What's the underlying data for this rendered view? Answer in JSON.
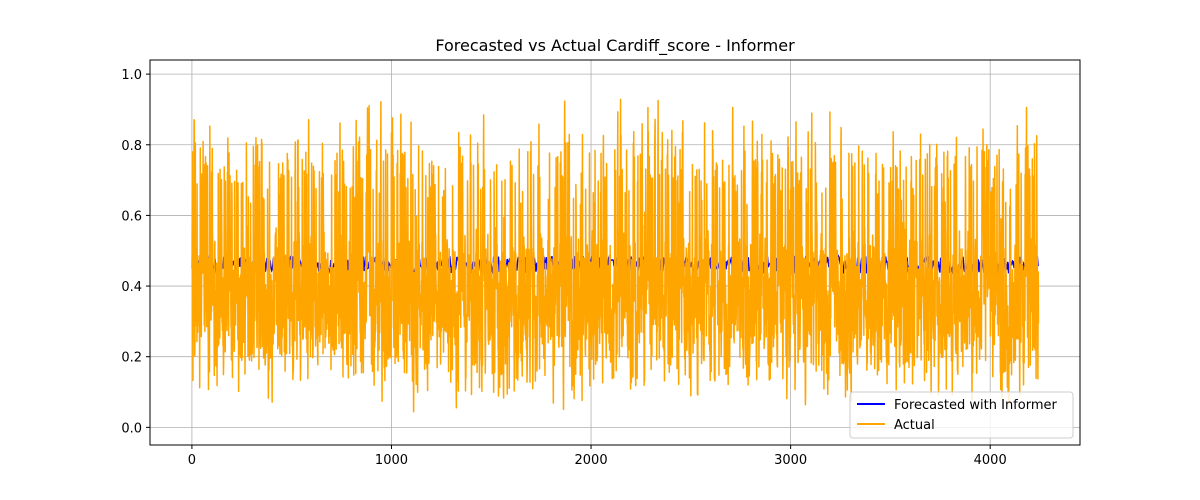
{
  "chart_data": {
    "type": "line",
    "title": "Forecasted vs Actual Cardiff_score - Informer",
    "xlabel": "",
    "ylabel": "",
    "xlim": [
      -210,
      4450
    ],
    "ylim": [
      -0.05,
      1.04
    ],
    "xticks": [
      0,
      1000,
      2000,
      3000,
      4000
    ],
    "yticks": [
      0.0,
      0.2,
      0.4,
      0.6,
      0.8,
      1.0
    ],
    "xtick_labels": [
      "0",
      "1000",
      "2000",
      "3000",
      "4000"
    ],
    "ytick_labels": [
      "0.0",
      "0.2",
      "0.4",
      "0.6",
      "0.8",
      "1.0"
    ],
    "grid": true,
    "legend_position": "lower-right",
    "n_points": 4243,
    "series": [
      {
        "name": "Forecasted with Informer",
        "color": "#0000ff",
        "summary": {
          "min": 0.44,
          "max": 0.49,
          "mean": 0.46
        }
      },
      {
        "name": "Actual",
        "color": "#ffa500",
        "summary": {
          "min": 0.0,
          "max": 1.0,
          "mean": 0.42
        }
      }
    ]
  }
}
